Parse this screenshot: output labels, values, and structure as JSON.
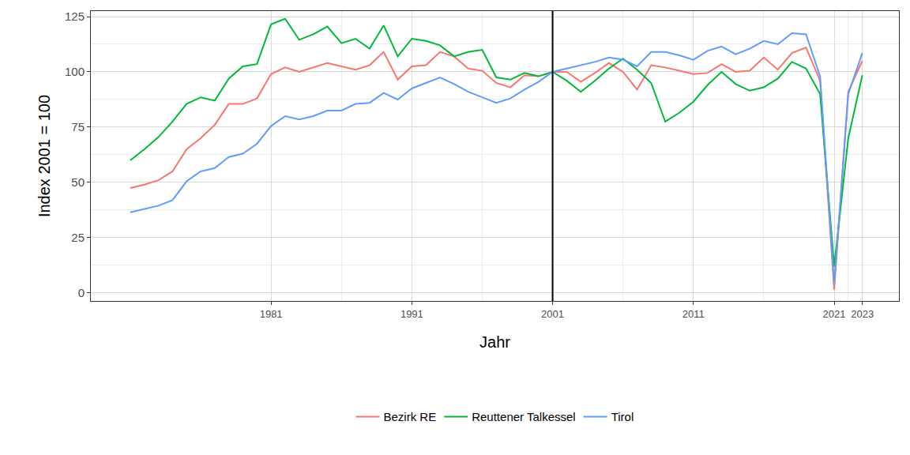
{
  "chart_data": {
    "type": "line",
    "x_label": "Jahr",
    "y_label": "Index 2001 = 100",
    "x": [
      1971,
      1972,
      1973,
      1974,
      1975,
      1976,
      1977,
      1978,
      1979,
      1980,
      1981,
      1982,
      1983,
      1984,
      1985,
      1986,
      1987,
      1988,
      1989,
      1990,
      1991,
      1992,
      1993,
      1994,
      1995,
      1996,
      1997,
      1998,
      1999,
      2000,
      2001,
      2002,
      2003,
      2004,
      2005,
      2006,
      2007,
      2008,
      2009,
      2010,
      2011,
      2012,
      2013,
      2014,
      2015,
      2016,
      2017,
      2018,
      2019,
      2020,
      2021,
      2022,
      2023
    ],
    "series": [
      {
        "name": "Bezirk RE",
        "color": "#F8766D",
        "values": [
          47.5,
          49,
          51,
          55,
          65,
          70,
          76,
          85.5,
          85.5,
          88,
          99,
          102,
          100,
          102,
          104,
          102.5,
          101,
          103,
          109,
          96.5,
          102.5,
          103,
          109,
          107,
          101.5,
          100.5,
          95,
          93,
          98.5,
          98,
          100,
          100,
          95.5,
          99.5,
          104,
          100,
          92,
          103,
          102,
          100.5,
          99,
          99.5,
          103.5,
          100,
          100.5,
          106.5,
          101,
          108.5,
          111,
          96,
          1.5,
          91,
          105
        ]
      },
      {
        "name": "Reuttener Talkessel",
        "color": "#00BA38",
        "values": [
          60,
          65,
          70.5,
          77.5,
          85.5,
          88.5,
          87,
          97,
          102.5,
          103.5,
          121.5,
          124,
          114.5,
          117,
          120.5,
          113,
          115,
          110.5,
          121,
          107,
          115,
          114,
          112,
          107,
          109,
          110,
          97.5,
          96.5,
          99.5,
          98,
          100,
          96,
          91,
          96,
          101.5,
          106,
          101,
          95,
          77.5,
          81.5,
          86.5,
          94,
          100,
          94.5,
          91.5,
          93,
          97,
          104.5,
          101.5,
          90,
          12,
          70,
          98.5
        ]
      },
      {
        "name": "Tirol",
        "color": "#619CFF",
        "values": [
          36.5,
          38,
          39.5,
          42,
          50.5,
          55,
          56.5,
          61.5,
          63,
          67.5,
          75.5,
          80,
          78.5,
          80,
          82.5,
          82.5,
          85.5,
          86,
          90.5,
          87.5,
          92.5,
          95,
          97.5,
          94.5,
          91,
          88.5,
          86,
          88,
          92,
          95.5,
          100,
          101.5,
          103,
          104.5,
          106.5,
          105.5,
          102.5,
          109,
          109,
          107.5,
          105.5,
          109.5,
          111.5,
          108,
          110.5,
          114,
          112.5,
          117.5,
          117,
          98,
          4,
          90,
          108.5
        ]
      }
    ],
    "xlim": [
      1968.2,
      2025.6
    ],
    "xticks": [
      1981,
      1991,
      2001,
      2011,
      2021,
      2023
    ],
    "ylim": [
      -3.6,
      127.5
    ],
    "yticks": [
      0,
      25,
      50,
      75,
      100,
      125
    ],
    "reference_line_x": 2001,
    "grid": true,
    "legend": "bottom"
  }
}
